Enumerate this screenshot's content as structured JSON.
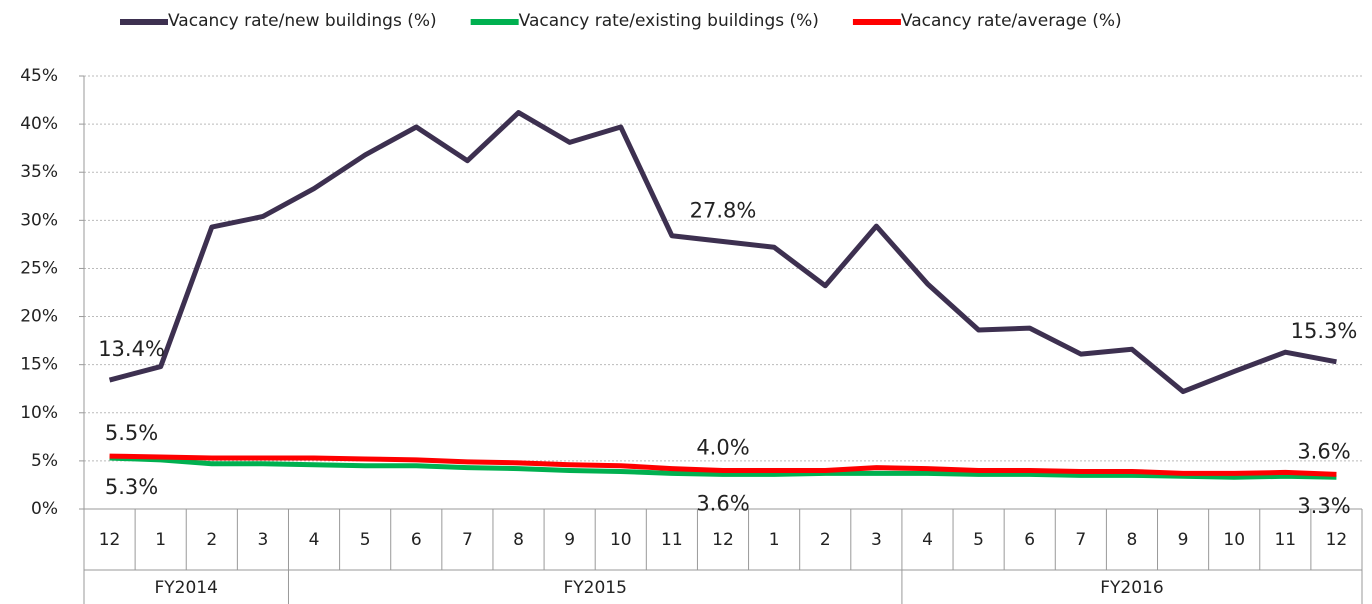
{
  "chart_data": {
    "type": "line",
    "categories": [
      "12",
      "1",
      "2",
      "3",
      "4",
      "5",
      "6",
      "7",
      "8",
      "9",
      "10",
      "11",
      "12",
      "1",
      "2",
      "3",
      "4",
      "5",
      "6",
      "7",
      "8",
      "9",
      "10",
      "11",
      "12"
    ],
    "groups": [
      {
        "label": "FY2014",
        "span": 4
      },
      {
        "label": "FY2015",
        "span": 12
      },
      {
        "label": "FY2016",
        "span": 9
      }
    ],
    "series": [
      {
        "name": "Vacancy rate/new buildings (%)",
        "color": "#3d3050",
        "values": [
          13.4,
          14.8,
          29.3,
          30.4,
          33.3,
          36.8,
          39.7,
          36.2,
          41.2,
          38.1,
          39.7,
          28.4,
          27.8,
          27.2,
          23.2,
          29.4,
          23.4,
          18.6,
          18.8,
          16.1,
          16.6,
          12.2,
          14.3,
          16.3,
          15.3
        ],
        "value_labels": [
          "13.4%",
          null,
          null,
          null,
          null,
          null,
          null,
          null,
          null,
          null,
          null,
          null,
          "27.8%",
          null,
          null,
          null,
          null,
          null,
          null,
          null,
          null,
          null,
          null,
          null,
          "15.3%"
        ]
      },
      {
        "name": "Vacancy rate/existing buildings (%)",
        "color": "#00b050",
        "values": [
          5.3,
          5.1,
          4.7,
          4.7,
          4.6,
          4.5,
          4.5,
          4.3,
          4.2,
          4.0,
          3.9,
          3.7,
          3.6,
          3.6,
          3.7,
          3.7,
          3.7,
          3.6,
          3.6,
          3.5,
          3.5,
          3.4,
          3.3,
          3.4,
          3.3
        ],
        "value_labels": [
          "5.3%",
          null,
          null,
          null,
          null,
          null,
          null,
          null,
          null,
          null,
          null,
          null,
          "3.6%",
          null,
          null,
          null,
          null,
          null,
          null,
          null,
          null,
          null,
          null,
          null,
          "3.3%"
        ]
      },
      {
        "name": "Vacancy rate/average (%)",
        "color": "#ff0000",
        "values": [
          5.5,
          5.4,
          5.3,
          5.3,
          5.3,
          5.2,
          5.1,
          4.9,
          4.8,
          4.6,
          4.5,
          4.2,
          4.0,
          4.0,
          4.0,
          4.3,
          4.2,
          4.0,
          4.0,
          3.9,
          3.9,
          3.7,
          3.7,
          3.8,
          3.6
        ],
        "value_labels": [
          "5.5%",
          null,
          null,
          null,
          null,
          null,
          null,
          null,
          null,
          null,
          null,
          null,
          "4.0%",
          null,
          null,
          null,
          null,
          null,
          null,
          null,
          null,
          null,
          null,
          null,
          "3.6%"
        ]
      }
    ],
    "ylim": [
      0,
      45
    ],
    "yticks": [
      {
        "value": 0,
        "label": "0%"
      },
      {
        "value": 5,
        "label": "5%"
      },
      {
        "value": 10,
        "label": "10%"
      },
      {
        "value": 15,
        "label": "15%"
      },
      {
        "value": 20,
        "label": "20%"
      },
      {
        "value": 25,
        "label": "25%"
      },
      {
        "value": 30,
        "label": "30%"
      },
      {
        "value": 35,
        "label": "35%"
      },
      {
        "value": 40,
        "label": "40%"
      },
      {
        "value": 45,
        "label": "45%"
      }
    ],
    "grid": true,
    "legend": "top"
  }
}
